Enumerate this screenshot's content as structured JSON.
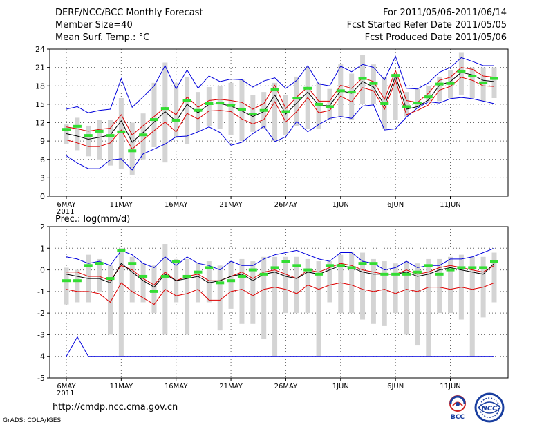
{
  "header": {
    "title": "DERF/NCC/BCC Monthly Forecast",
    "member_size": "Member Size=40",
    "variable": "Mean Surf. Temp.: °C",
    "period": "For 2011/05/06-2011/06/14",
    "started": "Fcst Started Refer Date 2011/05/05",
    "produced": "Fcst Produced Date 2011/05/06"
  },
  "footer": {
    "url": "http://cmdp.ncc.cma.gov.cn",
    "grads": "GrADS: COLA/IGES",
    "logo_bcc": "BCC",
    "logo_ncc": "NCC"
  },
  "colors": {
    "envelope": "#0000dd",
    "iqr": "#dd0000",
    "median": "#000000",
    "obs": "#33dd33",
    "box": "#d4d4d4",
    "grid": "#666666"
  },
  "chart_data": [
    {
      "type": "line",
      "title": "Mean Surf. Temp.: °C",
      "ylim": [
        0,
        24
      ],
      "yticks": [
        0,
        3,
        6,
        9,
        12,
        15,
        18,
        21,
        24
      ],
      "xticks": [
        "6MAY",
        "11MAY",
        "16MAY",
        "21MAY",
        "26MAY",
        "1JUN",
        "6JUN",
        "11JUN"
      ],
      "year_label": "2011",
      "series": [
        {
          "name": "max",
          "values": [
            14.2,
            14.6,
            13.6,
            14.0,
            14.2,
            19.2,
            14.5,
            16.2,
            18.0,
            21.3,
            17.5,
            20.6,
            17.6,
            19.6,
            18.7,
            19.1,
            19.0,
            17.8,
            18.8,
            19.3,
            17.6,
            18.9,
            21.3,
            18.3,
            18.0,
            21.2,
            20.3,
            21.5,
            21.0,
            19.0,
            22.8,
            17.6,
            17.5,
            18.5,
            20.2,
            21.0,
            22.6,
            22.0,
            21.3,
            21.3
          ]
        },
        {
          "name": "q3",
          "values": [
            11.3,
            11.0,
            10.6,
            10.9,
            11.1,
            13.3,
            10.0,
            11.5,
            13.0,
            14.5,
            13.3,
            16.2,
            14.5,
            15.6,
            15.8,
            15.6,
            15.3,
            14.2,
            15.1,
            18.1,
            14.3,
            16.2,
            17.8,
            15.5,
            15.5,
            18.1,
            17.6,
            19.3,
            18.7,
            15.8,
            20.5,
            15.6,
            15.3,
            16.8,
            18.9,
            19.4,
            21.0,
            20.7,
            19.6,
            19.4
          ]
        },
        {
          "name": "median",
          "values": [
            10.2,
            9.8,
            9.3,
            9.6,
            10.0,
            12.3,
            8.8,
            10.4,
            12.1,
            13.8,
            12.2,
            15.0,
            13.6,
            15.0,
            15.1,
            14.7,
            13.9,
            13.0,
            13.8,
            16.5,
            13.4,
            15.2,
            17.0,
            14.8,
            14.8,
            17.2,
            16.8,
            18.7,
            17.8,
            14.8,
            19.6,
            14.2,
            14.6,
            15.7,
            18.1,
            18.7,
            20.2,
            19.8,
            18.9,
            18.7
          ]
        },
        {
          "name": "q1",
          "values": [
            9.2,
            8.7,
            8.1,
            8.1,
            8.7,
            10.8,
            7.7,
            9.2,
            10.7,
            12.1,
            10.5,
            13.5,
            12.6,
            13.9,
            14.0,
            13.8,
            12.6,
            11.8,
            12.5,
            15.4,
            12.1,
            13.8,
            16.1,
            13.6,
            14.0,
            16.3,
            15.4,
            17.7,
            17.2,
            14.2,
            18.9,
            13.3,
            14.0,
            14.9,
            17.3,
            17.9,
            19.4,
            18.9,
            18.0,
            17.9
          ]
        },
        {
          "name": "min",
          "values": [
            6.6,
            5.4,
            4.5,
            4.5,
            5.9,
            6.1,
            4.3,
            6.9,
            7.7,
            8.5,
            9.7,
            9.8,
            10.5,
            11.3,
            10.4,
            8.3,
            8.8,
            10.2,
            11.4,
            8.9,
            9.7,
            12.2,
            10.5,
            11.7,
            12.7,
            13.0,
            12.7,
            14.7,
            14.9,
            10.8,
            11.0,
            12.9,
            14.4,
            15.4,
            15.2,
            15.9,
            16.1,
            15.9,
            15.5,
            15.1
          ]
        },
        {
          "name": "observed",
          "values": [
            10.9,
            11.4,
            9.9,
            10.6,
            9.9,
            10.5,
            7.4,
            10.0,
            12.5,
            14.3,
            12.4,
            15.6,
            14.0,
            15.1,
            15.2,
            14.8,
            14.2,
            13.4,
            14.0,
            17.4,
            13.8,
            16.0,
            17.6,
            15.0,
            14.6,
            17.2,
            17.0,
            19.2,
            18.4,
            15.1,
            19.7,
            14.6,
            15.2,
            16.2,
            18.3,
            18.4,
            20.4,
            19.6,
            18.5,
            19.2
          ]
        },
        {
          "name": "box_top",
          "values": [
            11.7,
            12.8,
            11.5,
            12.5,
            12.5,
            16.0,
            12.0,
            13.5,
            18.5,
            21.8,
            18.5,
            19.5,
            17.0,
            17.8,
            18.0,
            18.5,
            19.0,
            16.5,
            17.0,
            18.5,
            16.5,
            19.5,
            21.0,
            18.5,
            17.5,
            21.5,
            20.0,
            23.0,
            21.5,
            19.5,
            20.0,
            17.0,
            17.5,
            18.0,
            19.5,
            20.5,
            23.5,
            21.0,
            21.0,
            21.0
          ]
        },
        {
          "name": "box_bottom",
          "values": [
            8.5,
            7.5,
            6.5,
            6.0,
            5.0,
            4.5,
            3.5,
            6.0,
            8.0,
            5.5,
            9.5,
            8.5,
            10.5,
            11.5,
            11.0,
            10.0,
            9.0,
            10.5,
            11.0,
            9.0,
            10.0,
            11.5,
            11.0,
            11.0,
            12.5,
            13.0,
            12.5,
            15.0,
            15.0,
            11.0,
            12.5,
            13.0,
            14.5,
            15.5,
            15.5,
            16.0,
            16.5,
            16.0,
            15.5,
            16.0
          ]
        }
      ]
    },
    {
      "type": "line",
      "title": "Prec.: log(mm/d)",
      "ylim": [
        -5,
        2
      ],
      "yticks": [
        -5,
        -4,
        -3,
        -2,
        -1,
        0,
        1,
        2
      ],
      "xticks": [
        "6MAY",
        "11MAY",
        "16MAY",
        "21MAY",
        "26MAY",
        "1JUN",
        "6JUN",
        "11JUN"
      ],
      "year_label": "2011",
      "series": [
        {
          "name": "max",
          "values": [
            0.6,
            0.5,
            0.3,
            0.4,
            0.2,
            0.9,
            0.7,
            0.3,
            0.1,
            0.6,
            0.2,
            0.6,
            0.3,
            0.2,
            0.0,
            0.4,
            0.2,
            0.2,
            0.5,
            0.7,
            0.8,
            0.9,
            0.7,
            0.5,
            0.4,
            0.8,
            0.8,
            0.4,
            0.3,
            0.0,
            0.1,
            0.4,
            0.1,
            0.2,
            0.2,
            0.5,
            0.5,
            0.6,
            0.8,
            1.0
          ]
        },
        {
          "name": "q3",
          "values": [
            -0.1,
            -0.1,
            -0.3,
            -0.3,
            -0.5,
            0.2,
            0.0,
            -0.4,
            -0.7,
            -0.1,
            -0.5,
            -0.3,
            -0.2,
            -0.5,
            -0.5,
            -0.3,
            -0.1,
            -0.4,
            -0.1,
            0.0,
            -0.2,
            -0.4,
            0.0,
            -0.1,
            0.1,
            0.3,
            0.2,
            0.0,
            -0.1,
            -0.2,
            -0.2,
            0.0,
            -0.2,
            -0.1,
            0.1,
            0.2,
            0.1,
            0.0,
            -0.1,
            0.2
          ]
        },
        {
          "name": "median",
          "values": [
            -0.2,
            -0.3,
            -0.4,
            -0.4,
            -0.6,
            0.3,
            -0.1,
            -0.5,
            -0.8,
            -0.2,
            -0.5,
            -0.4,
            -0.3,
            -0.6,
            -0.5,
            -0.3,
            -0.2,
            -0.5,
            -0.2,
            -0.1,
            -0.3,
            -0.4,
            -0.1,
            -0.2,
            0.0,
            0.2,
            0.1,
            -0.1,
            -0.2,
            -0.2,
            -0.2,
            -0.1,
            -0.3,
            -0.2,
            0.0,
            0.1,
            0.0,
            -0.1,
            -0.2,
            0.3
          ]
        },
        {
          "name": "q1",
          "values": [
            -0.9,
            -1.0,
            -1.0,
            -1.1,
            -1.5,
            -0.6,
            -1.0,
            -1.3,
            -1.6,
            -0.9,
            -1.2,
            -1.1,
            -0.9,
            -1.4,
            -1.4,
            -1.0,
            -0.9,
            -1.2,
            -0.9,
            -0.8,
            -0.9,
            -1.1,
            -0.7,
            -0.9,
            -0.7,
            -0.6,
            -0.7,
            -0.9,
            -1.0,
            -0.9,
            -1.1,
            -0.9,
            -1.0,
            -0.8,
            -0.8,
            -0.9,
            -0.8,
            -0.9,
            -0.8,
            -0.6
          ]
        },
        {
          "name": "min",
          "values": [
            -4.0,
            -3.1,
            -4.0,
            -4.0,
            -4.0,
            -4.0,
            -4.0,
            -4.0,
            -4.0,
            -4.0,
            -4.0,
            -4.0,
            -4.0,
            -4.0,
            -4.0,
            -4.0,
            -4.0,
            -4.0,
            -4.0,
            -4.0,
            -4.0,
            -4.0,
            -4.0,
            -4.0,
            -4.0,
            -4.0,
            -4.0,
            -4.0,
            -4.0,
            -4.0,
            -4.0,
            -4.0,
            -4.0,
            -4.0,
            -4.0,
            -4.0,
            -4.0,
            -4.0,
            -4.0,
            -4.0
          ]
        },
        {
          "name": "observed",
          "values": [
            -0.5,
            -0.5,
            0.2,
            0.3,
            -0.4,
            0.9,
            0.3,
            -0.3,
            -1.0,
            -0.3,
            0.4,
            -0.3,
            -0.1,
            0.1,
            -0.6,
            -0.5,
            -0.3,
            0.0,
            -0.2,
            0.1,
            0.4,
            0.2,
            0.0,
            -0.2,
            0.2,
            0.2,
            0.1,
            0.3,
            0.3,
            -0.2,
            -0.2,
            -0.2,
            -0.1,
            0.2,
            -0.2,
            0.0,
            0.1,
            0.1,
            0.1,
            0.4
          ]
        },
        {
          "name": "box_top",
          "values": [
            0.1,
            0.0,
            0.7,
            0.5,
            0.2,
            1.0,
            0.6,
            0.3,
            0.2,
            1.2,
            0.5,
            0.5,
            0.3,
            0.4,
            0.2,
            0.4,
            0.5,
            0.4,
            0.6,
            0.6,
            0.6,
            0.6,
            0.5,
            0.4,
            0.4,
            0.7,
            0.8,
            0.8,
            0.5,
            0.4,
            0.3,
            0.4,
            0.3,
            0.5,
            0.5,
            0.6,
            0.7,
            0.6,
            0.6,
            0.8
          ]
        },
        {
          "name": "box_bottom",
          "values": [
            -1.6,
            -1.5,
            -1.5,
            -1.0,
            -3.0,
            -4.0,
            -1.5,
            -1.5,
            -2.0,
            -3.0,
            -1.5,
            -3.0,
            -1.5,
            -1.5,
            -2.8,
            -1.8,
            -2.5,
            -2.5,
            -3.2,
            -4.0,
            -2.0,
            -2.0,
            -2.0,
            -4.0,
            -1.5,
            -2.0,
            -2.0,
            -2.3,
            -2.5,
            -2.6,
            -2.0,
            -3.0,
            -3.5,
            -4.0,
            -2.0,
            -2.0,
            -2.3,
            -4.0,
            -2.2,
            -1.5
          ]
        }
      ]
    }
  ]
}
